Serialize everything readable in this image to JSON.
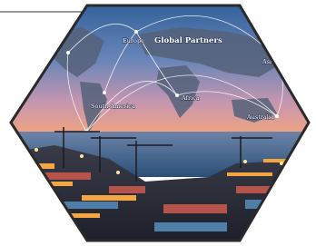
{
  "labels": {
    "europe": "Europe",
    "title": "Global Partners",
    "asia": "Asia",
    "south_america": "South America",
    "africa": "Africa",
    "australia": "Australia"
  }
}
